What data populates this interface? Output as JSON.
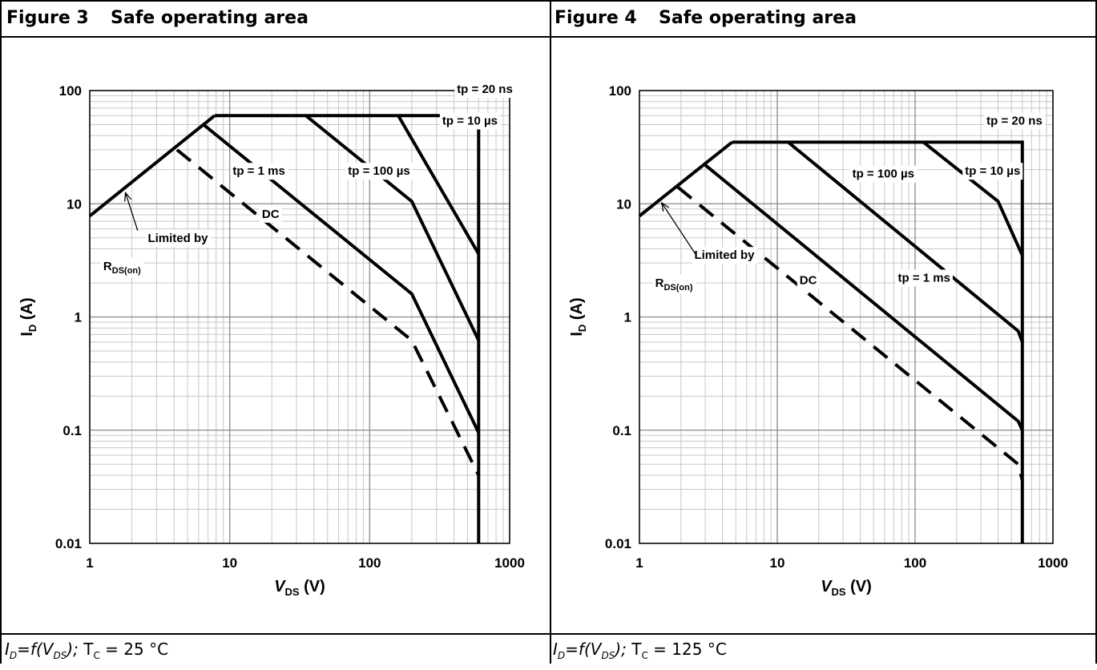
{
  "charts": [
    {
      "figure_label": "Figure 3",
      "figure_title": "Safe operating area",
      "caption": {
        "i": "I",
        "i_sub": "D",
        "eq": "=f(V",
        "v_sub": "DS",
        "close": ");",
        "t": " T",
        "t_sub": "C",
        "value": " = 25 °C"
      }
    },
    {
      "figure_label": "Figure 4",
      "figure_title": "Safe operating area",
      "caption": {
        "i": "I",
        "i_sub": "D",
        "eq": "=f(V",
        "v_sub": "DS",
        "close": ");",
        "t": " T",
        "t_sub": "C",
        "value": " = 125 °C"
      }
    }
  ],
  "chart_data": [
    {
      "type": "line",
      "title": "Safe operating area",
      "xlabel": {
        "main": "V",
        "sub": "DS",
        "unit": " (V)"
      },
      "ylabel": {
        "main": "I",
        "sub": "D",
        "unit": " (A)"
      },
      "xscale": "log",
      "yscale": "log",
      "xlim": [
        1,
        1000
      ],
      "ylim": [
        0.01,
        100
      ],
      "x_ticks": [
        "1",
        "10",
        "100",
        "1000"
      ],
      "y_ticks": [
        "0.01",
        "0.1",
        "1",
        "10",
        "100"
      ],
      "grid": true,
      "series": [
        {
          "name": "tp = 20 ns",
          "dash": false,
          "x": [
            7.8,
            600,
            600
          ],
          "y": [
            60,
            60,
            0.01
          ]
        },
        {
          "name": "tp = 10 µs",
          "dash": false,
          "x": [
            160,
            600
          ],
          "y": [
            60,
            3.6
          ]
        },
        {
          "name": "tp = 100 µs",
          "dash": false,
          "x": [
            35,
            200,
            600
          ],
          "y": [
            60,
            10.5,
            0.62
          ]
        },
        {
          "name": "tp = 1 ms",
          "dash": false,
          "x": [
            6.5,
            200,
            600
          ],
          "y": [
            50,
            1.6,
            0.095
          ]
        },
        {
          "name": "DC",
          "dash": true,
          "x": [
            4.2,
            200,
            600
          ],
          "y": [
            30,
            0.62,
            0.04
          ]
        },
        {
          "name": "Limited by R_DS(on)",
          "dash": false,
          "x": [
            1,
            7.8
          ],
          "y": [
            7.8,
            60
          ]
        }
      ],
      "annotations": [
        {
          "text": "tp = 20 ns",
          "x": 420,
          "y": 95
        },
        {
          "text": "tp = 10 µs",
          "x": 330,
          "y": 50
        },
        {
          "text": "tp = 100 µs",
          "x": 70,
          "y": 18
        },
        {
          "text": "tp = 1 ms",
          "x": 10.5,
          "y": 18
        },
        {
          "text": "DC",
          "x": 17,
          "y": 7.5
        },
        {
          "text": "Limited by",
          "x": 2.6,
          "y": 4.6
        },
        {
          "text": "R",
          "sub": "DS(on)",
          "x": 1.25,
          "y": 2.6
        }
      ]
    },
    {
      "type": "line",
      "title": "Safe operating area",
      "xlabel": {
        "main": "V",
        "sub": "DS",
        "unit": " (V)"
      },
      "ylabel": {
        "main": "I",
        "sub": "D",
        "unit": " (A)"
      },
      "xscale": "log",
      "yscale": "log",
      "xlim": [
        1,
        1000
      ],
      "ylim": [
        0.01,
        100
      ],
      "x_ticks": [
        "1",
        "10",
        "100",
        "1000"
      ],
      "y_ticks": [
        "0.01",
        "0.1",
        "1",
        "10",
        "100"
      ],
      "grid": true,
      "series": [
        {
          "name": "tp = 20 ns",
          "dash": false,
          "x": [
            4.7,
            600,
            600
          ],
          "y": [
            35,
            35,
            0.01
          ]
        },
        {
          "name": "tp = 10 µs",
          "dash": false,
          "x": [
            115,
            400,
            600
          ],
          "y": [
            35,
            10.5,
            3.5
          ]
        },
        {
          "name": "tp = 100 µs",
          "dash": false,
          "x": [
            12,
            560,
            600
          ],
          "y": [
            35,
            0.75,
            0.6
          ]
        },
        {
          "name": "tp = 1 ms",
          "dash": false,
          "x": [
            3,
            560,
            600
          ],
          "y": [
            22,
            0.12,
            0.1
          ]
        },
        {
          "name": "DC",
          "dash": true,
          "x": [
            1.9,
            560,
            600
          ],
          "y": [
            14,
            0.05,
            0.036
          ]
        },
        {
          "name": "Limited by R_DS(on)",
          "dash": false,
          "x": [
            1,
            4.7
          ],
          "y": [
            7.8,
            35
          ]
        }
      ],
      "annotations": [
        {
          "text": "tp = 20 ns",
          "x": 330,
          "y": 50
        },
        {
          "text": "tp = 10 µs",
          "x": 230,
          "y": 18
        },
        {
          "text": "tp = 100 µs",
          "x": 35,
          "y": 17
        },
        {
          "text": "tp = 1 ms",
          "x": 75,
          "y": 2.05
        },
        {
          "text": "DC",
          "x": 14.5,
          "y": 1.95
        },
        {
          "text": "Limited by",
          "x": 2.5,
          "y": 3.25
        },
        {
          "text": "R",
          "sub": "DS(on)",
          "x": 1.3,
          "y": 1.85
        }
      ]
    }
  ]
}
